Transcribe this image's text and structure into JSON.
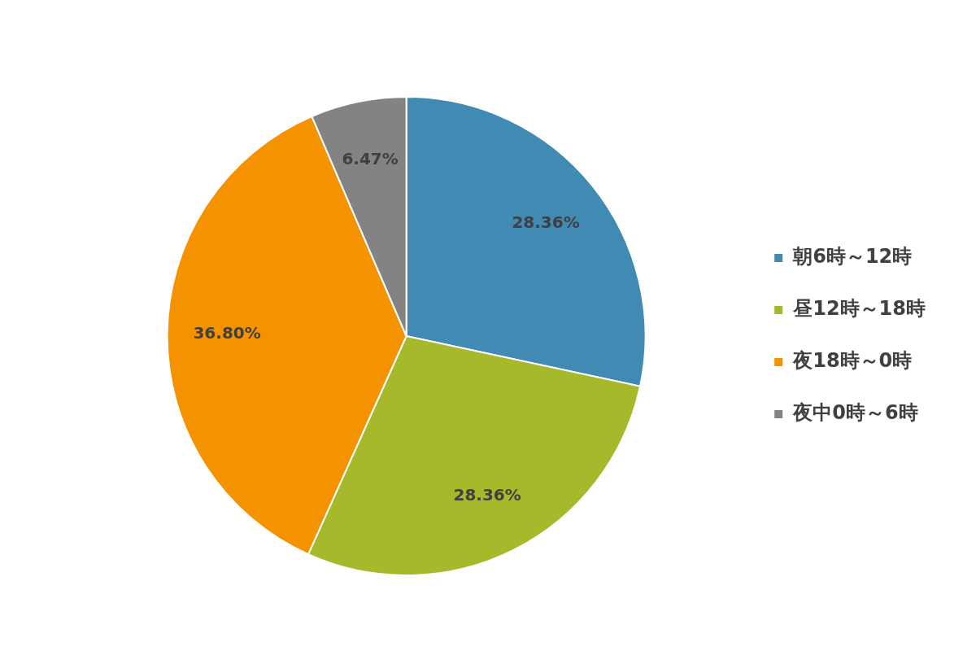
{
  "chart_data": {
    "type": "pie",
    "categories": [
      "朝6時～12時",
      "昼12時～18時",
      "夜18時～0時",
      "夜中0時～6時"
    ],
    "values": [
      28.36,
      28.36,
      36.8,
      6.47
    ],
    "value_labels": [
      "28.36%",
      "28.36%",
      "36.80%",
      "6.47%"
    ],
    "colors": [
      "#418ab3",
      "#a5b92a",
      "#f59200",
      "#838383"
    ],
    "legend": "right"
  }
}
